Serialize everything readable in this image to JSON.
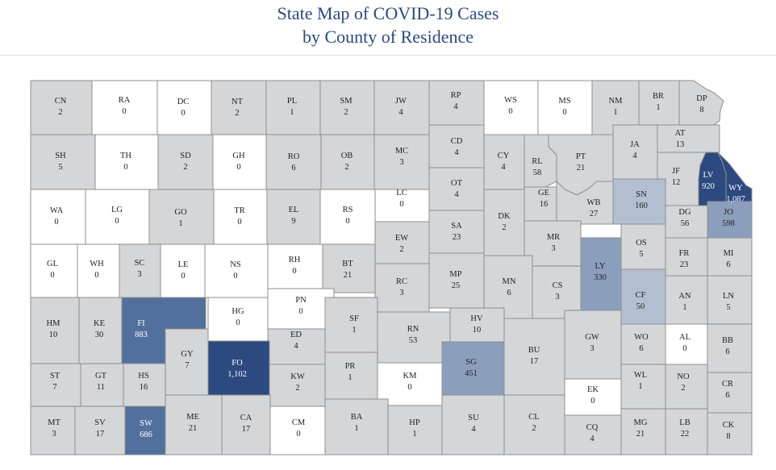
{
  "title_line1": "State Map of COVID-19 Cases",
  "title_line2": "by County of Residence",
  "colors": {
    "zero": "#ffffff",
    "low": "#d5d6d8",
    "mid": "#b3bfd0",
    "midhigh": "#8b9fbd",
    "high": "#52709e",
    "highest": "#2c4a7f",
    "text_dark": "#222222",
    "text_light": "#ffffff",
    "title": "#2b4a7a"
  },
  "counties": [
    {
      "abbr": "CN",
      "cases": "2",
      "shade": "low"
    },
    {
      "abbr": "RA",
      "cases": "0",
      "shade": "zero"
    },
    {
      "abbr": "DC",
      "cases": "0",
      "shade": "zero"
    },
    {
      "abbr": "NT",
      "cases": "2",
      "shade": "low"
    },
    {
      "abbr": "PL",
      "cases": "1",
      "shade": "low"
    },
    {
      "abbr": "SM",
      "cases": "2",
      "shade": "low"
    },
    {
      "abbr": "JW",
      "cases": "4",
      "shade": "low"
    },
    {
      "abbr": "RP",
      "cases": "4",
      "shade": "low"
    },
    {
      "abbr": "WS",
      "cases": "0",
      "shade": "zero"
    },
    {
      "abbr": "MS",
      "cases": "0",
      "shade": "zero"
    },
    {
      "abbr": "NM",
      "cases": "1",
      "shade": "low"
    },
    {
      "abbr": "BR",
      "cases": "1",
      "shade": "low"
    },
    {
      "abbr": "DP",
      "cases": "8",
      "shade": "low"
    },
    {
      "abbr": "SH",
      "cases": "5",
      "shade": "low"
    },
    {
      "abbr": "TH",
      "cases": "0",
      "shade": "zero"
    },
    {
      "abbr": "SD",
      "cases": "2",
      "shade": "low"
    },
    {
      "abbr": "GH",
      "cases": "0",
      "shade": "zero"
    },
    {
      "abbr": "RO",
      "cases": "6",
      "shade": "low"
    },
    {
      "abbr": "OB",
      "cases": "2",
      "shade": "low"
    },
    {
      "abbr": "MC",
      "cases": "3",
      "shade": "low"
    },
    {
      "abbr": "CD",
      "cases": "4",
      "shade": "low"
    },
    {
      "abbr": "CY",
      "cases": "4",
      "shade": "low"
    },
    {
      "abbr": "RL",
      "cases": "58",
      "shade": "low"
    },
    {
      "abbr": "PT",
      "cases": "21",
      "shade": "low"
    },
    {
      "abbr": "JA",
      "cases": "4",
      "shade": "low"
    },
    {
      "abbr": "AT",
      "cases": "13",
      "shade": "low"
    },
    {
      "abbr": "JF",
      "cases": "12",
      "shade": "low"
    },
    {
      "abbr": "LV",
      "cases": "920",
      "shade": "highest"
    },
    {
      "abbr": "WY",
      "cases": "1,087",
      "shade": "highest"
    },
    {
      "abbr": "WA",
      "cases": "0",
      "shade": "zero"
    },
    {
      "abbr": "LG",
      "cases": "0",
      "shade": "zero"
    },
    {
      "abbr": "GO",
      "cases": "1",
      "shade": "low"
    },
    {
      "abbr": "TR",
      "cases": "0",
      "shade": "zero"
    },
    {
      "abbr": "EL",
      "cases": "9",
      "shade": "low"
    },
    {
      "abbr": "RS",
      "cases": "0",
      "shade": "zero"
    },
    {
      "abbr": "LC",
      "cases": "0",
      "shade": "zero"
    },
    {
      "abbr": "OT",
      "cases": "4",
      "shade": "low"
    },
    {
      "abbr": "GE",
      "cases": "16",
      "shade": "low"
    },
    {
      "abbr": "WB",
      "cases": "27",
      "shade": "low"
    },
    {
      "abbr": "SN",
      "cases": "160",
      "shade": "mid"
    },
    {
      "abbr": "DG",
      "cases": "56",
      "shade": "low"
    },
    {
      "abbr": "JO",
      "cases": "598",
      "shade": "midhigh"
    },
    {
      "abbr": "DK",
      "cases": "2",
      "shade": "low"
    },
    {
      "abbr": "SA",
      "cases": "23",
      "shade": "low"
    },
    {
      "abbr": "EW",
      "cases": "2",
      "shade": "low"
    },
    {
      "abbr": "GL",
      "cases": "0",
      "shade": "zero"
    },
    {
      "abbr": "WH",
      "cases": "0",
      "shade": "zero"
    },
    {
      "abbr": "SC",
      "cases": "3",
      "shade": "low"
    },
    {
      "abbr": "LE",
      "cases": "0",
      "shade": "zero"
    },
    {
      "abbr": "NS",
      "cases": "0",
      "shade": "zero"
    },
    {
      "abbr": "RH",
      "cases": "0",
      "shade": "zero"
    },
    {
      "abbr": "BT",
      "cases": "21",
      "shade": "low"
    },
    {
      "abbr": "MR",
      "cases": "3",
      "shade": "low"
    },
    {
      "abbr": "OS",
      "cases": "5",
      "shade": "low"
    },
    {
      "abbr": "FR",
      "cases": "23",
      "shade": "low"
    },
    {
      "abbr": "MI",
      "cases": "6",
      "shade": "low"
    },
    {
      "abbr": "LY",
      "cases": "330",
      "shade": "midhigh"
    },
    {
      "abbr": "RC",
      "cases": "3",
      "shade": "low"
    },
    {
      "abbr": "MP",
      "cases": "25",
      "shade": "low"
    },
    {
      "abbr": "MN",
      "cases": "6",
      "shade": "low"
    },
    {
      "abbr": "CS",
      "cases": "3",
      "shade": "low"
    },
    {
      "abbr": "CF",
      "cases": "50",
      "shade": "mid"
    },
    {
      "abbr": "AN",
      "cases": "1",
      "shade": "low"
    },
    {
      "abbr": "LN",
      "cases": "5",
      "shade": "low"
    },
    {
      "abbr": "PN",
      "cases": "0",
      "shade": "zero"
    },
    {
      "abbr": "HM",
      "cases": "10",
      "shade": "low"
    },
    {
      "abbr": "KE",
      "cases": "30",
      "shade": "low"
    },
    {
      "abbr": "FI",
      "cases": "883",
      "shade": "high"
    },
    {
      "abbr": "HG",
      "cases": "0",
      "shade": "zero"
    },
    {
      "abbr": "SF",
      "cases": "1",
      "shade": "low"
    },
    {
      "abbr": "HV",
      "cases": "10",
      "shade": "low"
    },
    {
      "abbr": "ED",
      "cases": "4",
      "shade": "low"
    },
    {
      "abbr": "RN",
      "cases": "53",
      "shade": "low"
    },
    {
      "abbr": "BU",
      "cases": "17",
      "shade": "low"
    },
    {
      "abbr": "GW",
      "cases": "3",
      "shade": "low"
    },
    {
      "abbr": "WO",
      "cases": "6",
      "shade": "low"
    },
    {
      "abbr": "AL",
      "cases": "0",
      "shade": "zero"
    },
    {
      "abbr": "BB",
      "cases": "6",
      "shade": "low"
    },
    {
      "abbr": "GY",
      "cases": "7",
      "shade": "low"
    },
    {
      "abbr": "FO",
      "cases": "1,102",
      "shade": "highest"
    },
    {
      "abbr": "SG",
      "cases": "451",
      "shade": "midhigh"
    },
    {
      "abbr": "ST",
      "cases": "7",
      "shade": "low"
    },
    {
      "abbr": "GT",
      "cases": "11",
      "shade": "low"
    },
    {
      "abbr": "HS",
      "cases": "16",
      "shade": "low"
    },
    {
      "abbr": "KW",
      "cases": "2",
      "shade": "low"
    },
    {
      "abbr": "PR",
      "cases": "1",
      "shade": "low"
    },
    {
      "abbr": "KM",
      "cases": "0",
      "shade": "zero"
    },
    {
      "abbr": "EK",
      "cases": "0",
      "shade": "zero"
    },
    {
      "abbr": "WL",
      "cases": "1",
      "shade": "low"
    },
    {
      "abbr": "NO",
      "cases": "2",
      "shade": "low"
    },
    {
      "abbr": "CR",
      "cases": "6",
      "shade": "low"
    },
    {
      "abbr": "MT",
      "cases": "3",
      "shade": "low"
    },
    {
      "abbr": "SV",
      "cases": "17",
      "shade": "low"
    },
    {
      "abbr": "SW",
      "cases": "686",
      "shade": "high"
    },
    {
      "abbr": "ME",
      "cases": "21",
      "shade": "low"
    },
    {
      "abbr": "CA",
      "cases": "17",
      "shade": "low"
    },
    {
      "abbr": "CM",
      "cases": "0",
      "shade": "zero"
    },
    {
      "abbr": "BA",
      "cases": "1",
      "shade": "low"
    },
    {
      "abbr": "HP",
      "cases": "1",
      "shade": "low"
    },
    {
      "abbr": "SU",
      "cases": "4",
      "shade": "low"
    },
    {
      "abbr": "CL",
      "cases": "2",
      "shade": "low"
    },
    {
      "abbr": "CQ",
      "cases": "4",
      "shade": "low"
    },
    {
      "abbr": "MG",
      "cases": "21",
      "shade": "low"
    },
    {
      "abbr": "LB",
      "cases": "22",
      "shade": "low"
    },
    {
      "abbr": "CK",
      "cases": "8",
      "shade": "low"
    }
  ]
}
